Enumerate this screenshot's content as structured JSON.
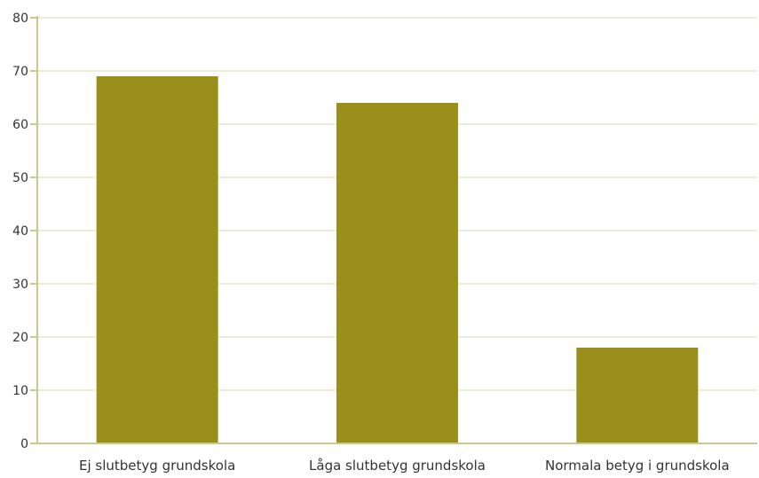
{
  "chart_data": {
    "type": "bar",
    "title": "",
    "xlabel": "",
    "ylabel": "",
    "categories": [
      "Ej slutbetyg grundskola",
      "Låga slutbetyg grundskola",
      "Normala betyg i grundskola"
    ],
    "values": [
      69,
      64,
      18
    ],
    "ylim": [
      0,
      80
    ],
    "yticks": [
      "0",
      "10",
      "20",
      "30",
      "40",
      "50",
      "60",
      "70",
      "80"
    ],
    "grid": true,
    "legend": "none",
    "colors": {
      "bar": "#9a8f1a",
      "axis": "#c9c98a",
      "grid": "#dedbb0"
    }
  }
}
